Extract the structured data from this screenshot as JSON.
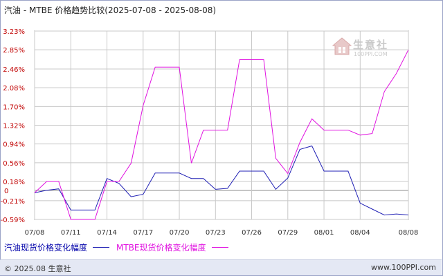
{
  "title": "汽油 - MTBE 价格趋势比较(2025-07-08 - 2025-08-08)",
  "legend": [
    {
      "label": "汽油现货价格变化幅度",
      "color": "#1f1fb4"
    },
    {
      "label": "MTBE现货价格变化幅度",
      "color": "#e010e0"
    }
  ],
  "footer": {
    "left": "© 2025.08 生意社",
    "right": "www.100PPI.com"
  },
  "watermark": {
    "brand": "生意社",
    "url": "100PPI.COM"
  },
  "chart_data": {
    "type": "line",
    "title": "汽油 - MTBE 价格趋势比较(2025-07-08 - 2025-08-08)",
    "xlabel": "",
    "ylabel": "",
    "x_tick_labels": [
      "07/08",
      "07/11",
      "07/14",
      "07/17",
      "07/20",
      "07/23",
      "07/26",
      "07/29",
      "08/01",
      "08/04",
      "08/08"
    ],
    "y_tick_labels": [
      "3.23%",
      "2.85%",
      "2.46%",
      "2.08%",
      "1.70%",
      "1.32%",
      "0.94%",
      "0.56%",
      "0.18%",
      "-0.21%",
      "-0.59%"
    ],
    "y_tick_values": [
      3.23,
      2.85,
      2.46,
      2.08,
      1.7,
      1.32,
      0.94,
      0.56,
      0.18,
      -0.21,
      -0.59
    ],
    "ylim": [
      -0.59,
      3.23
    ],
    "zero_line_label": "0",
    "grid": true,
    "legend_position": "bottom",
    "x": [
      "07/08",
      "07/09",
      "07/10",
      "07/11",
      "07/12",
      "07/13",
      "07/14",
      "07/15",
      "07/16",
      "07/17",
      "07/18",
      "07/19",
      "07/20",
      "07/21",
      "07/22",
      "07/23",
      "07/24",
      "07/25",
      "07/26",
      "07/27",
      "07/28",
      "07/29",
      "07/30",
      "07/31",
      "08/01",
      "08/02",
      "08/03",
      "08/04",
      "08/05",
      "08/06",
      "08/07",
      "08/08"
    ],
    "series": [
      {
        "name": "汽油现货价格变化幅度",
        "color": "#1f1fb4",
        "values": [
          -0.05,
          0.0,
          0.03,
          -0.4,
          -0.4,
          -0.4,
          0.24,
          0.14,
          -0.13,
          -0.08,
          0.35,
          0.35,
          0.35,
          0.24,
          0.24,
          0.02,
          0.04,
          0.39,
          0.39,
          0.39,
          0.02,
          0.25,
          0.83,
          0.9,
          0.39,
          0.39,
          0.39,
          -0.26,
          -0.38,
          -0.5,
          -0.48,
          -0.5
        ]
      },
      {
        "name": "MTBE现货价格变化幅度",
        "color": "#e010e0",
        "values": [
          -0.05,
          0.18,
          0.18,
          -0.59,
          -0.59,
          -0.59,
          0.18,
          0.18,
          0.55,
          1.72,
          2.5,
          2.5,
          2.5,
          0.55,
          1.22,
          1.22,
          1.22,
          2.65,
          2.65,
          2.65,
          0.65,
          0.34,
          0.97,
          1.45,
          1.22,
          1.22,
          1.22,
          1.12,
          1.15,
          2.0,
          2.37,
          2.85
        ]
      }
    ]
  }
}
